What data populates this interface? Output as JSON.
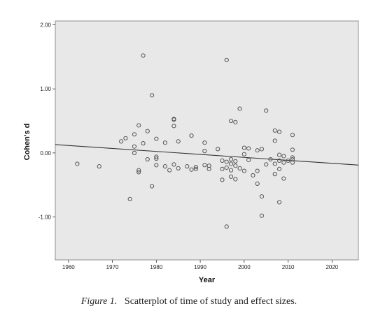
{
  "chart_data": {
    "type": "scatter",
    "xlabel": "Year",
    "ylabel": "Cohen's d",
    "xlim": [
      1957,
      2026
    ],
    "ylim": [
      -1.67,
      2.06
    ],
    "x_ticks": [
      1960,
      1970,
      1980,
      1990,
      2000,
      2010,
      2020
    ],
    "x_tick_labels": [
      "1960",
      "1970",
      "1980",
      "1990",
      "2000",
      "2010",
      "2020"
    ],
    "y_ticks": [
      -1.0,
      0.0,
      1.0,
      2.0
    ],
    "y_tick_labels": [
      "-1.00",
      "0.00",
      "1.00",
      "2.00"
    ],
    "grid": false,
    "background_color": "#e8e8e8",
    "marker_color": "#555555",
    "fit_line": {
      "x": [
        1957,
        2026
      ],
      "y": [
        0.13,
        -0.19
      ]
    },
    "points": [
      [
        1962,
        -0.17
      ],
      [
        1967,
        -0.21
      ],
      [
        1972,
        0.18
      ],
      [
        1973,
        0.23
      ],
      [
        1974,
        -0.72
      ],
      [
        1975,
        0.0
      ],
      [
        1975,
        0.29
      ],
      [
        1975,
        0.1
      ],
      [
        1976,
        0.43
      ],
      [
        1976,
        -0.27
      ],
      [
        1976,
        -0.3
      ],
      [
        1977,
        1.52
      ],
      [
        1977,
        0.15
      ],
      [
        1978,
        0.34
      ],
      [
        1978,
        -0.1
      ],
      [
        1979,
        0.9
      ],
      [
        1979,
        -0.52
      ],
      [
        1980,
        0.22
      ],
      [
        1980,
        -0.06
      ],
      [
        1980,
        -0.09
      ],
      [
        1980,
        -0.19
      ],
      [
        1982,
        0.16
      ],
      [
        1982,
        -0.21
      ],
      [
        1983,
        -0.27
      ],
      [
        1984,
        0.53
      ],
      [
        1984,
        0.52
      ],
      [
        1984,
        0.42
      ],
      [
        1984,
        -0.18
      ],
      [
        1985,
        0.18
      ],
      [
        1985,
        -0.24
      ],
      [
        1987,
        -0.21
      ],
      [
        1988,
        0.27
      ],
      [
        1988,
        -0.26
      ],
      [
        1989,
        -0.22
      ],
      [
        1989,
        -0.25
      ],
      [
        1991,
        0.16
      ],
      [
        1991,
        0.03
      ],
      [
        1991,
        -0.19
      ],
      [
        1992,
        -0.2
      ],
      [
        1992,
        -0.25
      ],
      [
        1994,
        0.06
      ],
      [
        1995,
        -0.12
      ],
      [
        1995,
        -0.25
      ],
      [
        1995,
        -0.42
      ],
      [
        1996,
        1.45
      ],
      [
        1996,
        -0.14
      ],
      [
        1996,
        -0.23
      ],
      [
        1996,
        -1.15
      ],
      [
        1997,
        0.5
      ],
      [
        1997,
        -0.1
      ],
      [
        1997,
        -0.17
      ],
      [
        1997,
        -0.27
      ],
      [
        1997,
        -0.37
      ],
      [
        1998,
        0.48
      ],
      [
        1998,
        -0.13
      ],
      [
        1998,
        -0.2
      ],
      [
        1998,
        -0.41
      ],
      [
        1999,
        0.69
      ],
      [
        1999,
        -0.24
      ],
      [
        2000,
        0.08
      ],
      [
        2000,
        -0.02
      ],
      [
        2000,
        -0.28
      ],
      [
        2001,
        0.07
      ],
      [
        2001,
        -0.11
      ],
      [
        2002,
        -0.35
      ],
      [
        2003,
        0.04
      ],
      [
        2003,
        -0.28
      ],
      [
        2003,
        -0.48
      ],
      [
        2004,
        0.06
      ],
      [
        2004,
        -0.68
      ],
      [
        2004,
        -0.98
      ],
      [
        2005,
        0.66
      ],
      [
        2005,
        -0.18
      ],
      [
        2006,
        -0.1
      ],
      [
        2007,
        0.35
      ],
      [
        2007,
        0.19
      ],
      [
        2007,
        -0.17
      ],
      [
        2007,
        -0.33
      ],
      [
        2008,
        0.33
      ],
      [
        2008,
        -0.03
      ],
      [
        2008,
        -0.12
      ],
      [
        2008,
        -0.25
      ],
      [
        2008,
        -0.77
      ],
      [
        2009,
        -0.05
      ],
      [
        2009,
        -0.15
      ],
      [
        2009,
        -0.4
      ],
      [
        2010,
        -0.12
      ],
      [
        2011,
        0.28
      ],
      [
        2011,
        0.05
      ],
      [
        2011,
        -0.07
      ],
      [
        2011,
        -0.1
      ],
      [
        2011,
        -0.15
      ]
    ]
  },
  "caption": {
    "figure_label": "Figure 1.",
    "text": "Scatterplot of time of study and effect sizes."
  }
}
